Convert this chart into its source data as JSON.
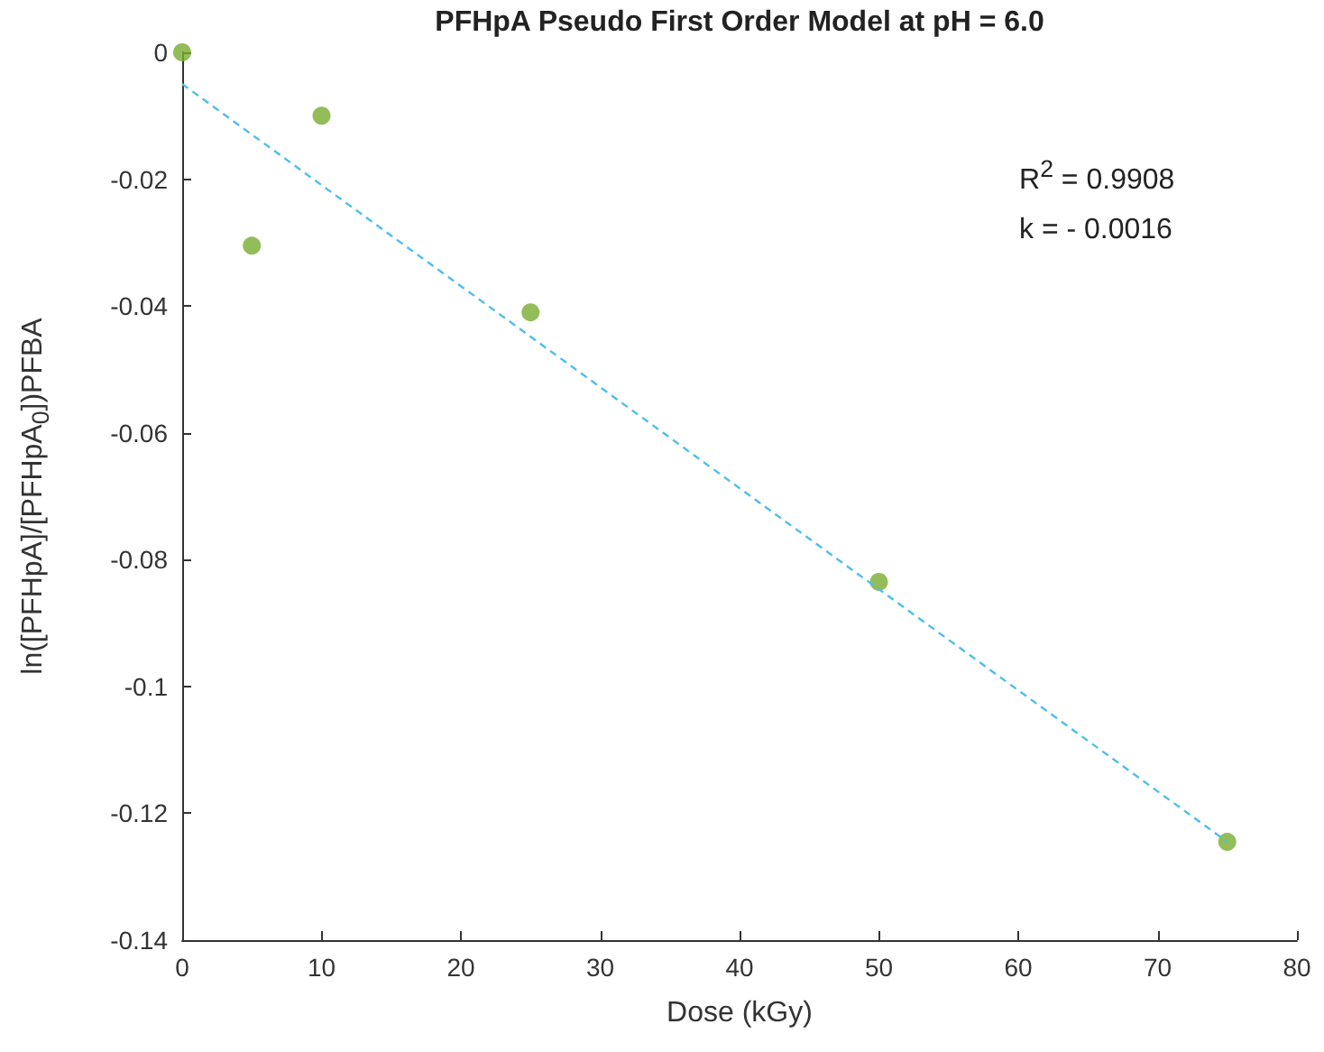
{
  "chart_data": {
    "type": "scatter",
    "title": "PFHpA Pseudo First Order Model at pH = 6.0",
    "xlabel": "Dose (kGy)",
    "ylabel": "ln([PFHpA]/[PFHpA$_{0}$])PFBA",
    "annotations": [
      "R$^{2}$ = 0.9908",
      "k = - 0.0016"
    ],
    "series": [
      {
        "color": "#77ac30",
        "marker": "circle",
        "x": [
          0,
          5,
          10,
          25,
          50,
          75
        ],
        "values": [
          0,
          -0.0305,
          -0.01,
          -0.041,
          -0.0835,
          -0.1245
        ]
      },
      {
        "type": "line",
        "color": "#4dbeee",
        "line_style": "dashed",
        "marker": "none",
        "x": [
          0,
          75
        ],
        "values": [
          -0.005,
          -0.1245
        ]
      }
    ],
    "xlim": [
      0,
      80
    ],
    "xticks": [
      0,
      10,
      20,
      30,
      40,
      50,
      60,
      70,
      80
    ],
    "ylim": [
      -0.14,
      0
    ],
    "yticks": [
      -0.14,
      -0.12,
      -0.1,
      -0.08,
      -0.06,
      -0.04,
      -0.02,
      0
    ],
    "grid": false
  }
}
